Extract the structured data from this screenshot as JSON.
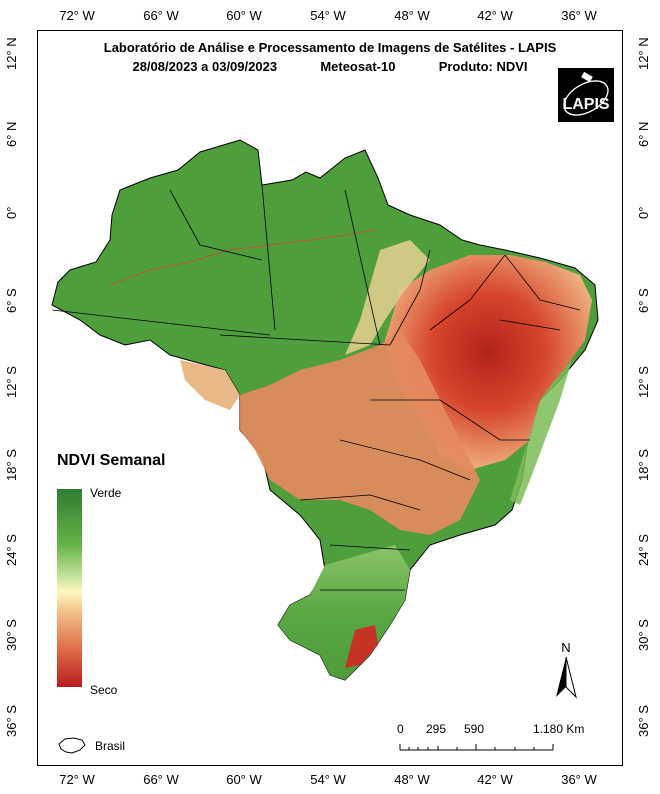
{
  "title_line1": "Laboratório de Análise e Processamento de Imagens de Satélites - LAPIS",
  "title_date": "28/08/2023  a  03/09/2023",
  "title_sensor": "Meteosat-10",
  "title_product": "Produto: NDVI",
  "logo_text": "LAPIS",
  "longitude_ticks": [
    "72° W",
    "66° W",
    "60° W",
    "54° W",
    "48° W",
    "42° W",
    "36° W"
  ],
  "latitude_ticks": [
    "12° N",
    "6° N",
    "0°",
    "6° S",
    "12° S",
    "18° S",
    "24° S",
    "30° S",
    "36° S"
  ],
  "legend": {
    "title": "NDVI Semanal",
    "high_label": "Verde",
    "low_label": "Seco",
    "outline_label": "Brasil"
  },
  "scale_bar": {
    "labels": [
      "0",
      "295",
      "590",
      "1.180 Km"
    ]
  },
  "north_label": "N",
  "colors": {
    "green": "#3f9a35",
    "light_green": "#a8d27a",
    "cream": "#f3d9a0",
    "orange": "#e0875a",
    "red": "#c62a1f"
  }
}
